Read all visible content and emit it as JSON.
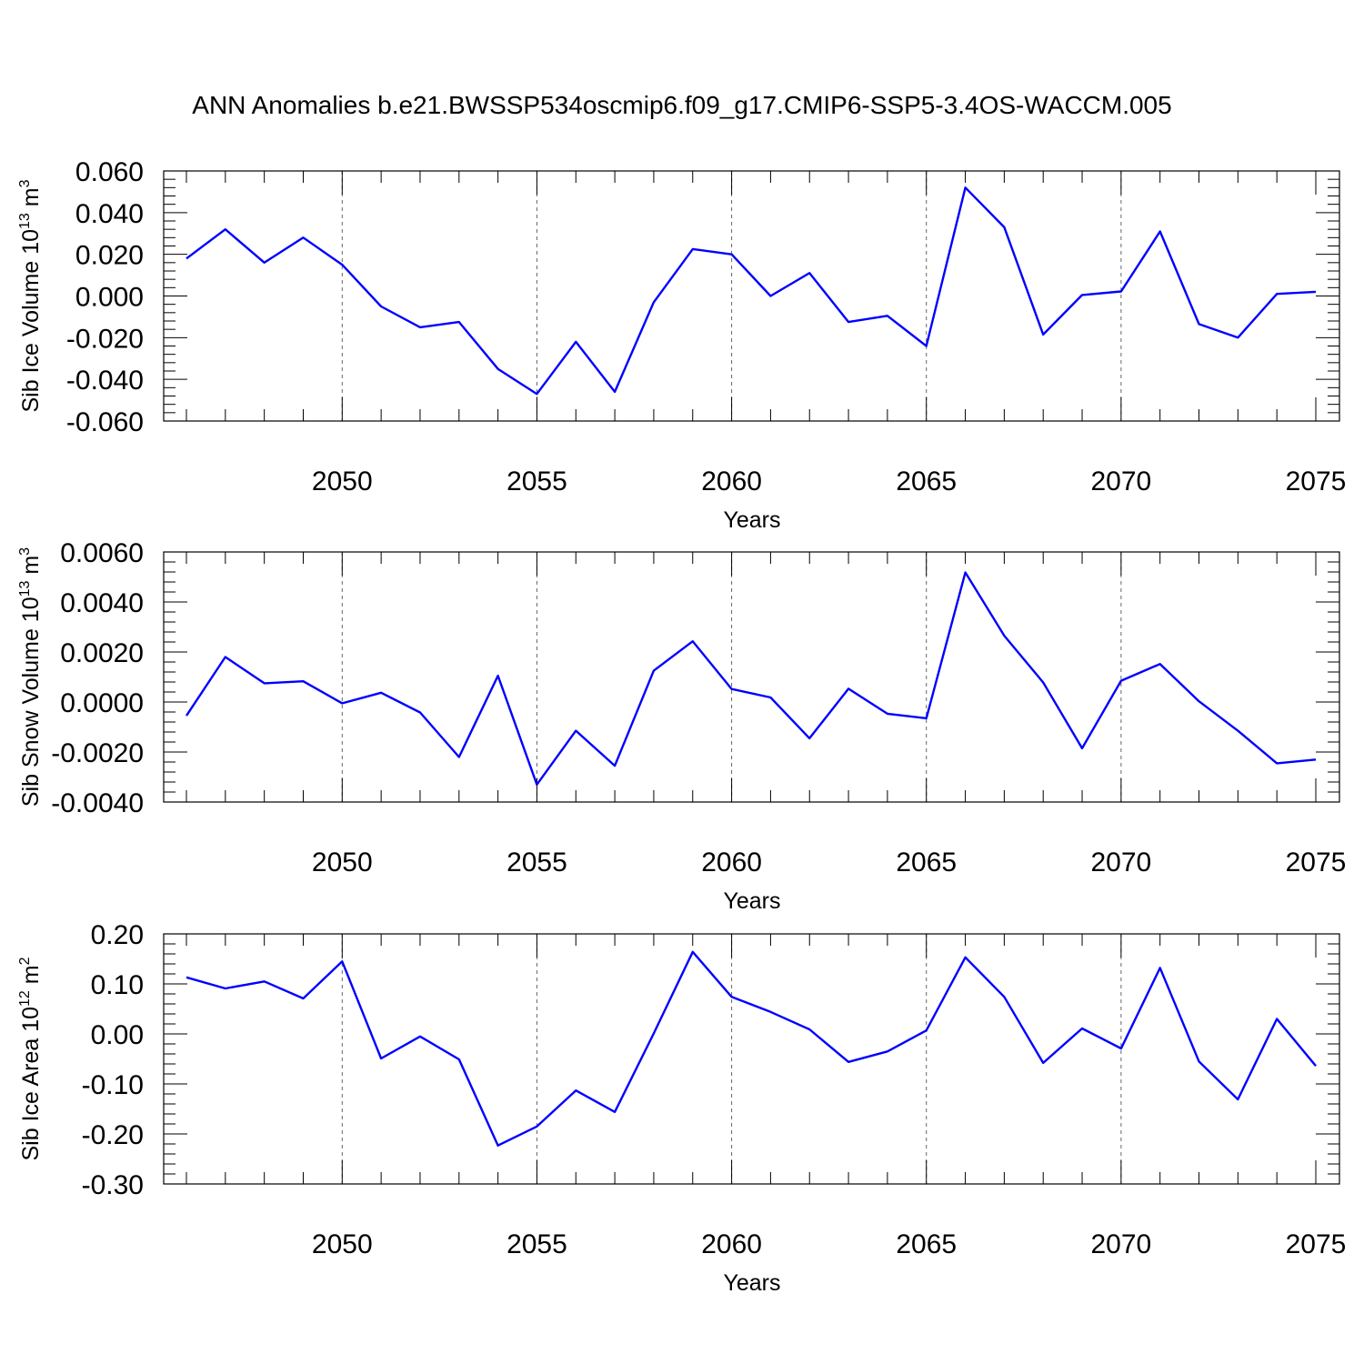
{
  "title": "ANN Anomalies b.e21.BWSSP534oscmip6.f09_g17.CMIP6-SSP5-3.4OS-WACCM.005",
  "chart_data": [
    {
      "type": "line",
      "xlabel": "Years",
      "ylabel": {
        "text": "Sib Ice Volume 10",
        "sup": "13",
        "unit": " m",
        "unit_sup": "3"
      },
      "xlim": [
        2046,
        2075
      ],
      "ylim": [
        -0.06,
        0.06
      ],
      "xticks": [
        2050,
        2055,
        2060,
        2065,
        2070,
        2075
      ],
      "xtick_labels": [
        "2050",
        "2055",
        "2060",
        "2065",
        "2070",
        "2075"
      ],
      "yticks": [
        -0.06,
        -0.04,
        -0.02,
        0.0,
        0.02,
        0.04,
        0.06
      ],
      "ytick_labels": [
        "-0.060",
        "-0.040",
        "-0.020",
        "0.000",
        "0.020",
        "0.040",
        "0.060"
      ],
      "grid": "vertical dashed at major x ticks",
      "color": "#0000ff",
      "x": [
        2046,
        2047,
        2048,
        2049,
        2050,
        2051,
        2052,
        2053,
        2054,
        2055,
        2056,
        2057,
        2058,
        2059,
        2060,
        2061,
        2062,
        2063,
        2064,
        2065,
        2066,
        2067,
        2068,
        2069,
        2070,
        2071,
        2072,
        2073,
        2074,
        2075
      ],
      "values": [
        0.018,
        0.032,
        0.016,
        0.028,
        0.015,
        -0.005,
        -0.015,
        -0.0125,
        -0.035,
        -0.047,
        -0.022,
        -0.046,
        -0.003,
        0.0225,
        0.02,
        0.0,
        0.011,
        -0.0125,
        -0.0095,
        -0.024,
        0.052,
        0.033,
        -0.0185,
        0.0005,
        0.0022,
        0.031,
        -0.0135,
        -0.02,
        0.001,
        0.002
      ]
    },
    {
      "type": "line",
      "xlabel": "Years",
      "ylabel": {
        "text": "Sib Snow Volume 10",
        "sup": "13",
        "unit": " m",
        "unit_sup": "3"
      },
      "xlim": [
        2046,
        2075
      ],
      "ylim": [
        -0.004,
        0.006
      ],
      "xticks": [
        2050,
        2055,
        2060,
        2065,
        2070,
        2075
      ],
      "xtick_labels": [
        "2050",
        "2055",
        "2060",
        "2065",
        "2070",
        "2075"
      ],
      "yticks": [
        -0.004,
        -0.002,
        0.0,
        0.002,
        0.004,
        0.006
      ],
      "ytick_labels": [
        "-0.0040",
        "-0.0020",
        "0.0000",
        "0.0020",
        "0.0040",
        "0.0060"
      ],
      "grid": "vertical dashed at major x ticks",
      "color": "#0000ff",
      "x": [
        2046,
        2047,
        2048,
        2049,
        2050,
        2051,
        2052,
        2053,
        2054,
        2055,
        2056,
        2057,
        2058,
        2059,
        2060,
        2061,
        2062,
        2063,
        2064,
        2065,
        2066,
        2067,
        2068,
        2069,
        2070,
        2071,
        2072,
        2073,
        2074,
        2075
      ],
      "values": [
        -0.00055,
        0.0018,
        0.00075,
        0.00083,
        -5e-05,
        0.00037,
        -0.00042,
        -0.0022,
        0.00105,
        -0.0033,
        -0.00115,
        -0.00255,
        0.00125,
        0.00243,
        0.00052,
        0.00018,
        -0.00145,
        0.00053,
        -0.00047,
        -0.00065,
        0.00518,
        0.00265,
        0.00078,
        -0.00185,
        0.00085,
        0.00152,
        3e-05,
        -0.00115,
        -0.00245,
        -0.0023
      ]
    },
    {
      "type": "line",
      "xlabel": "Years",
      "ylabel": {
        "text": "Sib Ice Area 10",
        "sup": "12",
        "unit": " m",
        "unit_sup": "2"
      },
      "xlim": [
        2046,
        2075
      ],
      "ylim": [
        -0.3,
        0.2
      ],
      "xticks": [
        2050,
        2055,
        2060,
        2065,
        2070,
        2075
      ],
      "xtick_labels": [
        "2050",
        "2055",
        "2060",
        "2065",
        "2070",
        "2075"
      ],
      "yticks": [
        -0.3,
        -0.2,
        -0.1,
        0.0,
        0.1,
        0.2
      ],
      "ytick_labels": [
        "-0.30",
        "-0.20",
        "-0.10",
        "0.00",
        "0.10",
        "0.20"
      ],
      "grid": "vertical dashed at major x ticks",
      "color": "#0000ff",
      "x": [
        2046,
        2047,
        2048,
        2049,
        2050,
        2051,
        2052,
        2053,
        2054,
        2055,
        2056,
        2057,
        2058,
        2059,
        2060,
        2061,
        2062,
        2063,
        2064,
        2065,
        2066,
        2067,
        2068,
        2069,
        2070,
        2071,
        2072,
        2073,
        2074,
        2075
      ],
      "values": [
        0.113,
        0.091,
        0.105,
        0.071,
        0.145,
        -0.049,
        -0.005,
        -0.051,
        -0.223,
        -0.185,
        -0.113,
        -0.156,
        0.001,
        0.164,
        0.074,
        0.044,
        0.009,
        -0.056,
        -0.035,
        0.007,
        0.153,
        0.074,
        -0.058,
        0.011,
        -0.029,
        0.132,
        -0.055,
        -0.131,
        0.03,
        -0.064
      ]
    }
  ]
}
